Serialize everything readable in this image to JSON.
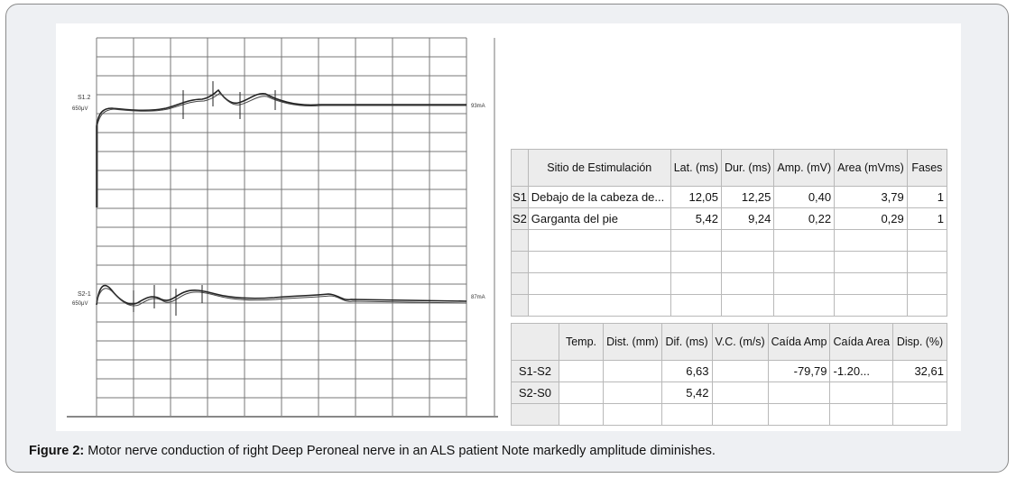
{
  "tracing": {
    "trace1_label": "S1.2",
    "trace1_gain": "650μV",
    "trace1_right": "93mA",
    "trace2_label": "S2-1",
    "trace2_gain": "650μV",
    "trace2_right": "87mA"
  },
  "table1": {
    "headers": [
      "Sitio de Estimulación",
      "Lat. (ms)",
      "Dur. (ms)",
      "Amp. (mV)",
      "Area (mVms)",
      "Fases"
    ],
    "rows": [
      {
        "id": "S1",
        "site": "Debajo de la cabeza de...",
        "lat": "12,05",
        "dur": "12,25",
        "amp": "0,40",
        "area": "3,79",
        "fases": "1"
      },
      {
        "id": "S2",
        "site": "Garganta del pie",
        "lat": "5,42",
        "dur": "9,24",
        "amp": "0,22",
        "area": "0,29",
        "fases": "1"
      }
    ]
  },
  "table2": {
    "headers": [
      "Temp.",
      "Dist. (mm)",
      "Dif. (ms)",
      "V.C. (m/s)",
      "Caída Amp",
      "Caída Area",
      "Disp. (%)"
    ],
    "rows": [
      {
        "id": "S1-S2",
        "temp": "",
        "dist": "",
        "dif": "6,63",
        "vc": "",
        "caida_amp": "-79,79",
        "caida_area": "-1.20...",
        "disp": "32,61"
      },
      {
        "id": "S2-S0",
        "temp": "",
        "dist": "",
        "dif": "5,42",
        "vc": "",
        "caida_amp": "",
        "caida_area": "",
        "disp": ""
      }
    ]
  },
  "caption": {
    "label": "Figure 2:",
    "text": " Motor nerve conduction of right Deep Peroneal nerve in an ALS patient Note markedly amplitude diminishes."
  }
}
